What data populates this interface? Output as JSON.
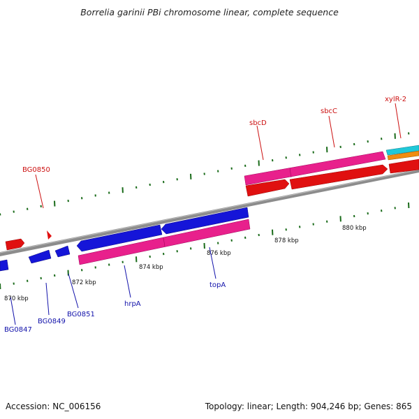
{
  "title": "Borrelia garinii PBi chromosome linear, complete sequence",
  "footer": {
    "accession": "Accession: NC_006156",
    "topology": "Topology: linear; Length: 904,246 bp; Genes: 865"
  },
  "colors": {
    "backbone": "#8c8c8c",
    "tick": "#1a6b1a",
    "forward_gene": "#e01010",
    "reverse_gene": "#1515d8",
    "cds_forward": "#e8208c",
    "label_forward": "#cc1111",
    "label_reverse": "#1111aa",
    "cyan": "#20c8d8",
    "orange": "#f08c10"
  },
  "ticks": [
    "870 kbp",
    "872 kbp",
    "874 kbp",
    "876 kbp",
    "878 kbp",
    "880 kbp"
  ],
  "labels": {
    "BG0850": "BG0850",
    "sbcD": "sbcD",
    "sbcC": "sbcC",
    "xylR2": "xylR-2",
    "BG0847": "BG0847",
    "BG0849": "BG0849",
    "BG0851": "BG0851",
    "hrpA": "hrpA",
    "topA": "topA"
  }
}
